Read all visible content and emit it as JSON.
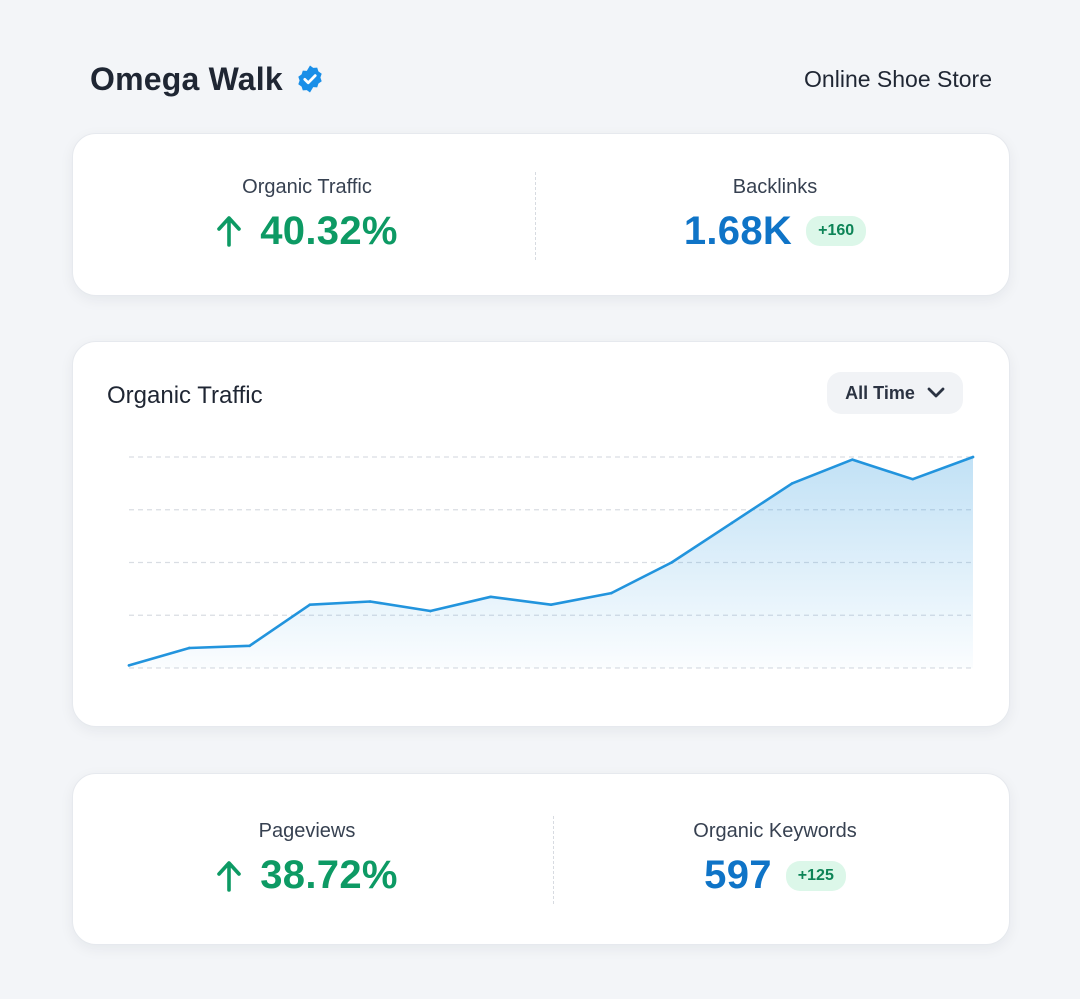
{
  "header": {
    "brand_name": "Omega Walk",
    "store_type": "Online Shoe Store",
    "verified_icon": "verified-badge-icon"
  },
  "top_stats": {
    "organic_traffic": {
      "label": "Organic Traffic",
      "value": "40.32%",
      "trend": "up"
    },
    "backlinks": {
      "label": "Backlinks",
      "value": "1.68K",
      "delta": "+160"
    }
  },
  "chart": {
    "title": "Organic Traffic",
    "period": "All Time"
  },
  "chart_data": {
    "type": "area",
    "title": "Organic Traffic",
    "xlabel": "",
    "ylabel": "",
    "grid": true,
    "ylim": [
      0,
      4
    ],
    "x": [
      0,
      1,
      2,
      3,
      4,
      5,
      6,
      7,
      8,
      9,
      10,
      11,
      12,
      13,
      14
    ],
    "values": [
      0.05,
      0.38,
      0.42,
      1.2,
      1.26,
      1.08,
      1.35,
      1.2,
      1.42,
      2.0,
      2.75,
      3.5,
      3.95,
      3.58,
      4.0
    ],
    "color": "#2294dd"
  },
  "bottom_stats": {
    "pageviews": {
      "label": "Pageviews",
      "value": "38.72%",
      "trend": "up"
    },
    "organic_keywords": {
      "label": "Organic Keywords",
      "value": "597",
      "delta": "+125"
    }
  },
  "colors": {
    "green": "#0d9a64",
    "blue": "#0f74c7",
    "badge_bg": "#dcf7e9",
    "line": "#2294dd"
  }
}
